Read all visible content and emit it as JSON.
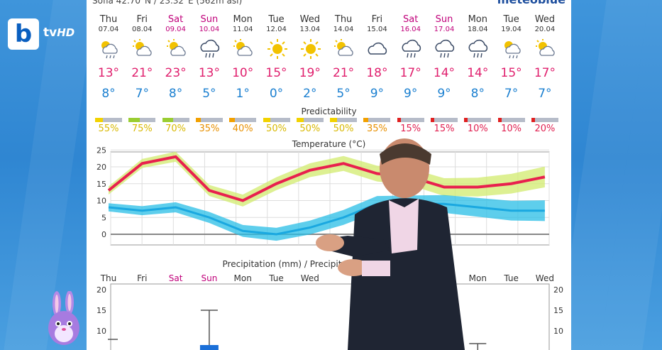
{
  "header": {
    "location": "Sofia  42.70°N / 23.32°E (562m asl)",
    "brand": "meteoblue"
  },
  "logo": {
    "letter": "b",
    "text": "tv",
    "suffix": "HD"
  },
  "days": [
    {
      "name": "Thu",
      "date": "07.04",
      "weekend": false,
      "icon": "partly-sunny-rain-icon",
      "hi": "13°",
      "lo": "8°"
    },
    {
      "name": "Fri",
      "date": "08.04",
      "weekend": false,
      "icon": "partly-sunny-icon",
      "hi": "21°",
      "lo": "7°"
    },
    {
      "name": "Sat",
      "date": "09.04",
      "weekend": true,
      "icon": "partly-sunny-icon",
      "hi": "23°",
      "lo": "8°"
    },
    {
      "name": "Sun",
      "date": "10.04",
      "weekend": true,
      "icon": "rain-cloud-icon",
      "hi": "13°",
      "lo": "5°"
    },
    {
      "name": "Mon",
      "date": "11.04",
      "weekend": false,
      "icon": "partly-sunny-icon",
      "hi": "10°",
      "lo": "1°"
    },
    {
      "name": "Tue",
      "date": "12.04",
      "weekend": false,
      "icon": "sun-icon",
      "hi": "15°",
      "lo": "0°"
    },
    {
      "name": "Wed",
      "date": "13.04",
      "weekend": false,
      "icon": "sun-icon",
      "hi": "19°",
      "lo": "2°"
    },
    {
      "name": "Thu",
      "date": "14.04",
      "weekend": false,
      "icon": "partly-sunny-icon",
      "hi": "21°",
      "lo": "5°"
    },
    {
      "name": "Fri",
      "date": "15.04",
      "weekend": false,
      "icon": "cloud-icon",
      "hi": "18°",
      "lo": "9°"
    },
    {
      "name": "Sat",
      "date": "16.04",
      "weekend": true,
      "icon": "rain-cloud-icon",
      "hi": "17°",
      "lo": "9°"
    },
    {
      "name": "Sun",
      "date": "17.04",
      "weekend": true,
      "icon": "rain-cloud-icon",
      "hi": "14°",
      "lo": "9°"
    },
    {
      "name": "Mon",
      "date": "18.04",
      "weekend": false,
      "icon": "rain-cloud-icon",
      "hi": "14°",
      "lo": "8°"
    },
    {
      "name": "Tue",
      "date": "19.04",
      "weekend": false,
      "icon": "partly-sunny-rain-icon",
      "hi": "15°",
      "lo": "7°"
    },
    {
      "name": "Wed",
      "date": "20.04",
      "weekend": false,
      "icon": "partly-sunny-icon",
      "hi": "17°",
      "lo": "7°"
    }
  ],
  "predictability": {
    "title": "Predictability",
    "values": [
      "55%",
      "75%",
      "70%",
      "35%",
      "40%",
      "50%",
      "50%",
      "50%",
      "35%",
      "15%",
      "15%",
      "10%",
      "10%",
      "20%"
    ],
    "levels": [
      55,
      75,
      70,
      35,
      40,
      50,
      50,
      50,
      35,
      15,
      15,
      10,
      10,
      20
    ]
  },
  "temperature": {
    "title": "Temperature (°C)",
    "y_ticks": [
      "25",
      "20",
      "15",
      "10",
      "5",
      "0"
    ],
    "max": [
      13,
      21,
      23,
      13,
      10,
      15,
      19,
      21,
      18,
      17,
      14,
      14,
      15,
      17
    ],
    "min": [
      8,
      7,
      8,
      5,
      1,
      0,
      2,
      5,
      9,
      9,
      9,
      8,
      7,
      7
    ]
  },
  "precipitation": {
    "title": "Precipitation (mm) / Precipitat",
    "days": [
      "Thu",
      "Fri",
      "Sat",
      "Sun",
      "Mon",
      "Tue",
      "Wed",
      "",
      "",
      "",
      "",
      "Mon",
      "Tue",
      "Wed"
    ],
    "y_ticks_left": [
      "20",
      "15",
      "10"
    ],
    "y_ticks_right": [
      "20",
      "15",
      "10"
    ]
  },
  "colors": {
    "max": "#e8204e",
    "min": "#1a7fd0",
    "weekend": "#c0007a",
    "hi_text": "#e0206e",
    "lo_text": "#1a7fd0"
  }
}
